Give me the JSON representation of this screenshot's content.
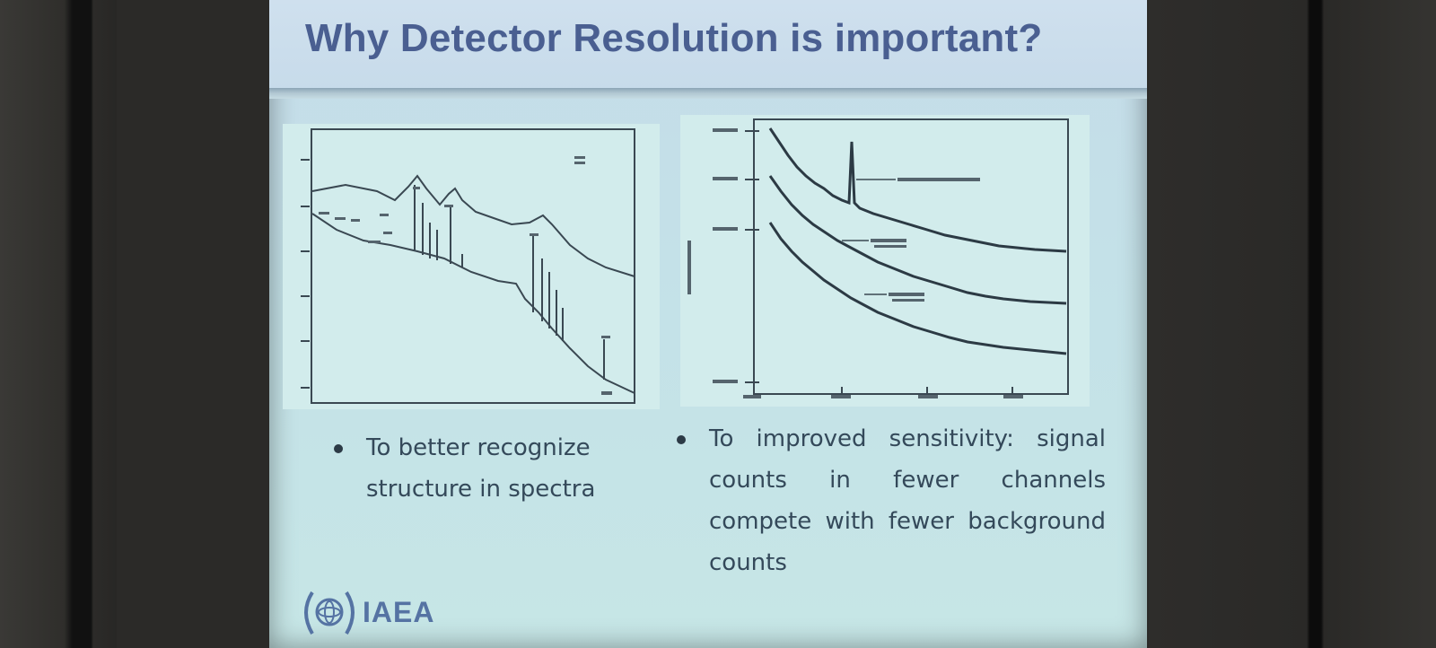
{
  "slide": {
    "title": "Why Detector Resolution is important?",
    "bullets_left": [
      "To better recognize structure in spectra"
    ],
    "bullets_right": [
      "To improved sensitivity: signal counts in fewer channels compete with fewer background counts"
    ],
    "logo_text": "IAEA"
  },
  "colors": {
    "title": "#4a5f91",
    "slide_bg": "#c6e2e8",
    "bullet_text": "#34495a",
    "logo": "#5573a3"
  },
  "icons": [
    "iaea-emblem-icon",
    "bullet-dot-icon"
  ]
}
